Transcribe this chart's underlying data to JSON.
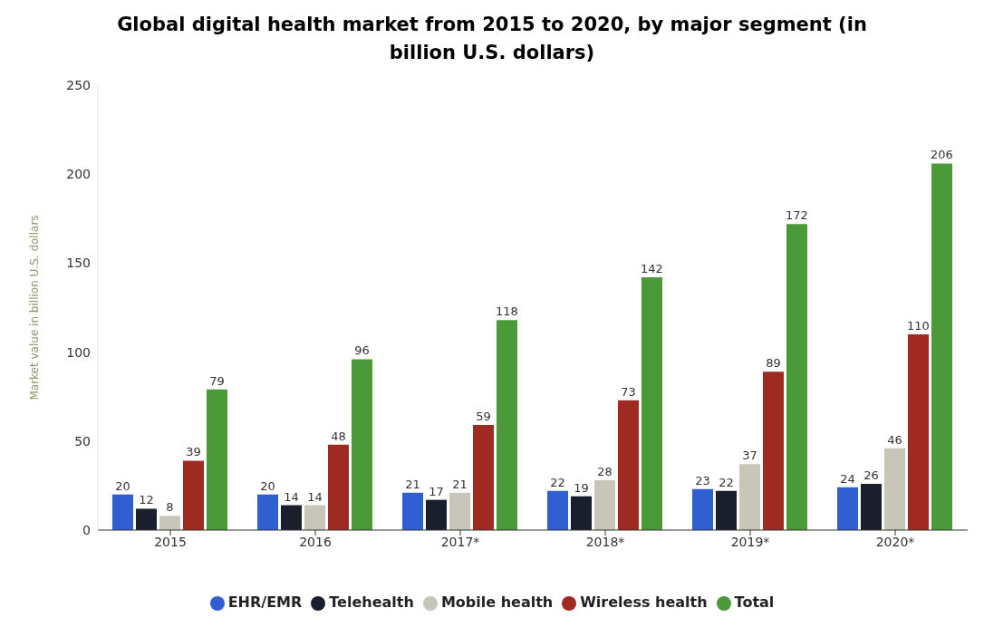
{
  "chart_data": {
    "type": "bar",
    "title": "Global digital health market from 2015 to 2020, by major segment (in billion U.S. dollars)",
    "ylabel": "Market value in billion U.S. dollars",
    "categories": [
      "2015",
      "2016",
      "2017*",
      "2018*",
      "2019*",
      "2020*"
    ],
    "series": [
      {
        "name": "EHR/EMR",
        "color": "#2f5fd0",
        "values": [
          20,
          20,
          21,
          22,
          23,
          24
        ]
      },
      {
        "name": "Telehealth",
        "color": "#1a1f2e",
        "values": [
          12,
          14,
          17,
          19,
          22,
          26
        ]
      },
      {
        "name": "Mobile health",
        "color": "#c8c6b8",
        "values": [
          8,
          14,
          21,
          28,
          37,
          46
        ]
      },
      {
        "name": "Wireless health",
        "color": "#9e2a22",
        "values": [
          39,
          48,
          59,
          73,
          89,
          110
        ]
      },
      {
        "name": "Total",
        "color": "#4a9a3a",
        "values": [
          79,
          96,
          118,
          142,
          172,
          206
        ]
      }
    ],
    "ylim": [
      0,
      250
    ],
    "yticks": [
      0,
      50,
      100,
      150,
      200,
      250
    ],
    "grid": false,
    "legend": "bottom",
    "data_labels": true
  }
}
